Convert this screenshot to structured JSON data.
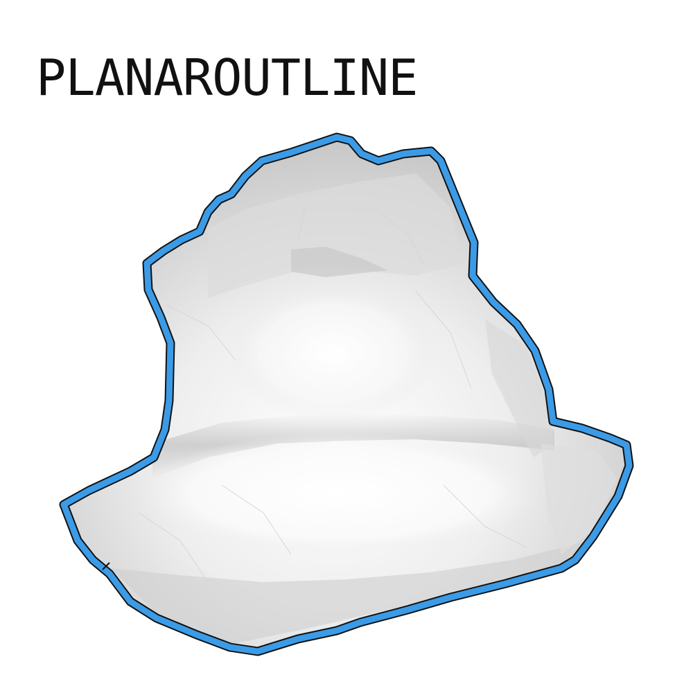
{
  "title": "PLANAROUTLINE",
  "colors": {
    "outline": "#3c9be6",
    "outline_edge": "#111111",
    "surface_light": "#ffffff",
    "surface_mid": "#e6e6e6",
    "surface_dark": "#b5b5b5",
    "background": "#ffffff",
    "text": "#111111"
  }
}
